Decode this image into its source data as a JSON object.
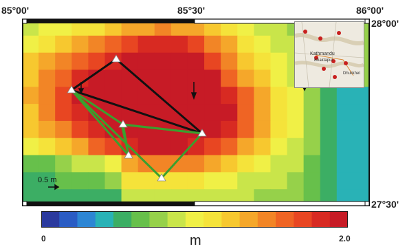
{
  "coordinates": {
    "top_left": "85°00'",
    "top_mid": "85°30'",
    "top_right": "86°00'",
    "right_top": "28°00'",
    "right_bottom": "27°30'"
  },
  "scale_bar": {
    "label": "0.5 m"
  },
  "colorbar": {
    "min_label": "0",
    "max_label": "2.0",
    "unit": "m",
    "colors": [
      "#2b3a9e",
      "#2a5cc4",
      "#2d86d4",
      "#29b2b6",
      "#3cae64",
      "#67c04b",
      "#96d14a",
      "#c9e54a",
      "#f0f046",
      "#f5e33a",
      "#f7c82f",
      "#f5a72a",
      "#f28526",
      "#ef6424",
      "#e84622",
      "#d82a22",
      "#c71b26"
    ]
  },
  "inset": {
    "city_label": "Kathmandu",
    "secondary_label": "Bhaktapur",
    "tertiary_label": "Dhulikhel"
  }
}
